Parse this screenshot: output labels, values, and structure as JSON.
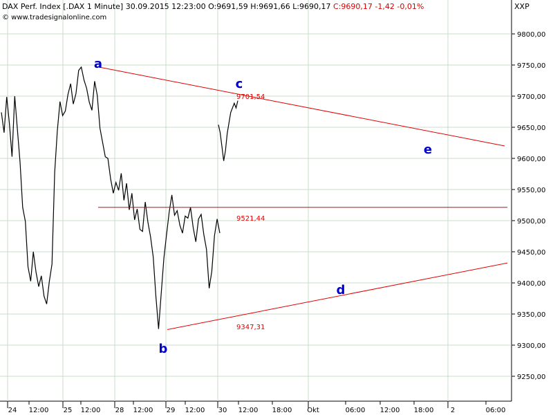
{
  "header": {
    "title": "DAX Perf. Index [.DAX  1 Minute]",
    "datetime": "30.09.2015 12:23:00",
    "ohlc": "O:9691,59 H:9691,66 L:9690,17",
    "close_change": "C:9690,17 -1,42 -0,01%",
    "source": "© www.tradesignalonline.com",
    "symbol": "XXP"
  },
  "colors": {
    "price": "#000000",
    "trendline": "#e00000",
    "wave_label": "#0000cc",
    "grid": "#c8dcc8",
    "background": "#ffffff"
  },
  "chart_data": {
    "type": "line",
    "ylim": [
      9210,
      9840
    ],
    "yticks": [
      9250,
      9300,
      9350,
      9400,
      9450,
      9500,
      9550,
      9600,
      9650,
      9700,
      9750,
      9800
    ],
    "ytick_labels": [
      "9250,00",
      "9300,00",
      "9350,00",
      "9400,00",
      "9450,00",
      "9500,00",
      "9550,00",
      "9600,00",
      "9650,00",
      "9700,00",
      "9750,00",
      "9800,00"
    ],
    "xtick_labels": [
      "24",
      "12:00",
      "25",
      "12:00",
      "28",
      "12:00",
      "29",
      "12:00",
      "30",
      "12:00",
      "18:00",
      "Okt",
      "06:00",
      "12:00",
      "18:00",
      "2",
      "06:00"
    ],
    "series": [
      {
        "values": [
          9670,
          9640,
          9700,
          9660,
          9600,
          9700,
          9650,
          9590,
          9520,
          9500,
          9430,
          9400,
          9450,
          9420,
          9390,
          9410,
          9380,
          9370,
          9400,
          9430,
          9580,
          9640,
          9690,
          9670,
          9680,
          9700,
          9720,
          9690,
          9700,
          9740,
          9748,
          9730,
          9710,
          9690,
          9680,
          9720,
          9700,
          9650,
          9630,
          9600,
          9600,
          9570,
          9540,
          9560,
          9550,
          9580,
          9530,
          9560,
          9520,
          9540,
          9500,
          9520,
          9490,
          9480,
          9530,
          9500,
          9470,
          9440,
          9380,
          9330,
          9380,
          9440,
          9480,
          9510,
          9540,
          9510,
          9520,
          9490,
          9480,
          9510,
          9500,
          9520,
          9490,
          9470,
          9500,
          9510,
          9480,
          9450,
          9390,
          9420,
          9480,
          9500,
          9480
        ]
      },
      {
        "values": [
          9650,
          9640,
          9620,
          9600,
          9610,
          9640,
          9660,
          9670,
          9680,
          9690,
          9685,
          9690
        ]
      }
    ],
    "trendlines": [
      {
        "from_label": "a",
        "from_value": 9748,
        "to_value": 9620,
        "label": "9701,54"
      },
      {
        "from_label": "b",
        "from_value": 9325,
        "to_value": 9432,
        "label": "9347,31"
      },
      {
        "horizontal": true,
        "value": 9521.44,
        "label": "9521,44"
      }
    ],
    "wave_labels": [
      "a",
      "b",
      "c",
      "d",
      "e"
    ]
  }
}
